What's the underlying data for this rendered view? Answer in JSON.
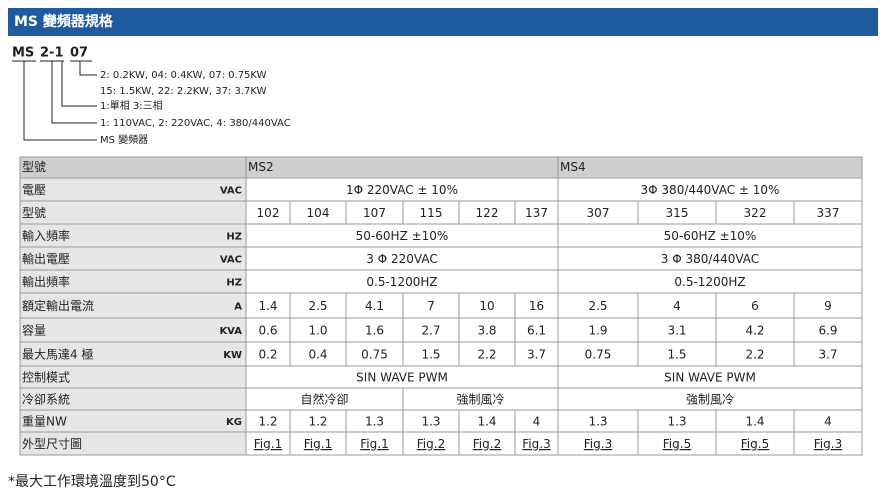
{
  "header": {
    "title": "MS 變頻器規格"
  },
  "model_code": {
    "parts": [
      "MS",
      "2-1",
      "07"
    ],
    "legend": [
      "2: 0.2KW, 04: 0.4KW, 07: 0.75KW",
      "15: 1.5KW, 22: 2.2KW, 37: 3.7KW",
      "1:單相   3:三相",
      "1: 110VAC, 2: 220VAC, 4: 380/440VAC",
      "MS 變頻器"
    ]
  },
  "table": {
    "header": [
      "型號",
      "MS2",
      "MS4"
    ],
    "rows": [
      {
        "label": "電壓",
        "unit": "VAC",
        "ms2": "1Φ 220VAC ± 10%",
        "ms4": "3Φ 380/440VAC ± 10%"
      },
      {
        "label": "型號",
        "ms2": [
          "102",
          "104",
          "107",
          "115",
          "122",
          "137"
        ],
        "ms4": [
          "307",
          "315",
          "322",
          "337"
        ]
      },
      {
        "label": "輸入頻率",
        "unit": "HZ",
        "ms2": "50-60HZ ±10%",
        "ms4": "50-60HZ ±10%"
      },
      {
        "label": "輸出電壓",
        "unit": "VAC",
        "ms2": "3 Φ 220VAC",
        "ms4": "3 Φ 380/440VAC"
      },
      {
        "label": "輸出頻率",
        "unit": "HZ",
        "ms2": "0.5-1200HZ",
        "ms4": "0.5-1200HZ"
      },
      {
        "label": "額定輸出電流",
        "unit": "A",
        "ms2": [
          "1.4",
          "2.5",
          "4.1",
          "7",
          "10",
          "16"
        ],
        "ms4": [
          "2.5",
          "4",
          "6",
          "9"
        ]
      },
      {
        "label": "容量",
        "unit": "KVA",
        "ms2": [
          "0.6",
          "1.0",
          "1.6",
          "2.7",
          "3.8",
          "6.1"
        ],
        "ms4": [
          "1.9",
          "3.1",
          "4.2",
          "6.9"
        ]
      },
      {
        "label": "最大馬達4 極",
        "unit": "KW",
        "ms2": [
          "0.2",
          "0.4",
          "0.75",
          "1.5",
          "2.2",
          "3.7"
        ],
        "ms4": [
          "0.75",
          "1.5",
          "2.2",
          "3.7"
        ]
      },
      {
        "label": "控制模式",
        "ms2": "SIN WAVE PWM",
        "ms4": "SIN WAVE PWM"
      },
      {
        "label": "冷卻系統",
        "ms2": [
          "自然冷卻",
          "強制風冷"
        ],
        "ms4": "強制風冷"
      },
      {
        "label": "重量NW",
        "unit": "KG",
        "ms2": [
          "1.2",
          "1.2",
          "1.3",
          "1.3",
          "1.4",
          "4"
        ],
        "ms4": [
          "1.3",
          "1.3",
          "1.4",
          "4"
        ]
      },
      {
        "label": "外型尺寸圖",
        "ms2": [
          "Fig.1",
          "Fig.1",
          "Fig.1",
          "Fig.2",
          "Fig.2",
          "Fig.3"
        ],
        "ms4": [
          "Fig.3",
          "Fig.5",
          "Fig.5",
          "Fig.3"
        ]
      }
    ]
  },
  "footnote": "*最大工作環境溫度到50°C"
}
